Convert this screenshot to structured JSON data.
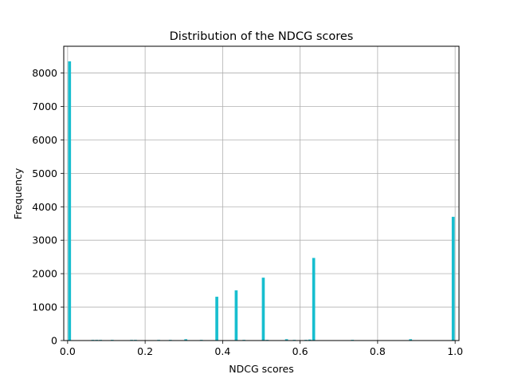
{
  "chart_data": {
    "type": "bar",
    "title": "Distribution of the NDCG scores",
    "xlabel": "NDCG scores",
    "ylabel": "Frequency",
    "xlim": [
      -0.01,
      1.01
    ],
    "ylim": [
      0,
      8800
    ],
    "xticks": [
      0.0,
      0.2,
      0.4,
      0.6,
      0.8,
      1.0
    ],
    "xtick_labels": [
      "0.0",
      "0.2",
      "0.4",
      "0.6",
      "0.8",
      "1.0"
    ],
    "yticks": [
      0,
      1000,
      2000,
      3000,
      4000,
      5000,
      6000,
      7000,
      8000
    ],
    "ytick_labels": [
      "0",
      "1000",
      "2000",
      "3000",
      "4000",
      "5000",
      "6000",
      "7000",
      "8000"
    ],
    "grid": true,
    "bar_color": "#17becf",
    "bin_width": 0.01,
    "bins": [
      {
        "x": 0.005,
        "value": 8350
      },
      {
        "x": 0.065,
        "value": 20
      },
      {
        "x": 0.075,
        "value": 20
      },
      {
        "x": 0.085,
        "value": 20
      },
      {
        "x": 0.115,
        "value": 20
      },
      {
        "x": 0.165,
        "value": 20
      },
      {
        "x": 0.175,
        "value": 20
      },
      {
        "x": 0.235,
        "value": 20
      },
      {
        "x": 0.265,
        "value": 20
      },
      {
        "x": 0.305,
        "value": 40
      },
      {
        "x": 0.345,
        "value": 20
      },
      {
        "x": 0.385,
        "value": 1310
      },
      {
        "x": 0.435,
        "value": 1500
      },
      {
        "x": 0.455,
        "value": 20
      },
      {
        "x": 0.505,
        "value": 1880
      },
      {
        "x": 0.515,
        "value": 20
      },
      {
        "x": 0.565,
        "value": 40
      },
      {
        "x": 0.585,
        "value": 20
      },
      {
        "x": 0.615,
        "value": 20
      },
      {
        "x": 0.625,
        "value": 30
      },
      {
        "x": 0.635,
        "value": 2470
      },
      {
        "x": 0.735,
        "value": 20
      },
      {
        "x": 0.885,
        "value": 40
      },
      {
        "x": 0.995,
        "value": 3700
      }
    ]
  }
}
